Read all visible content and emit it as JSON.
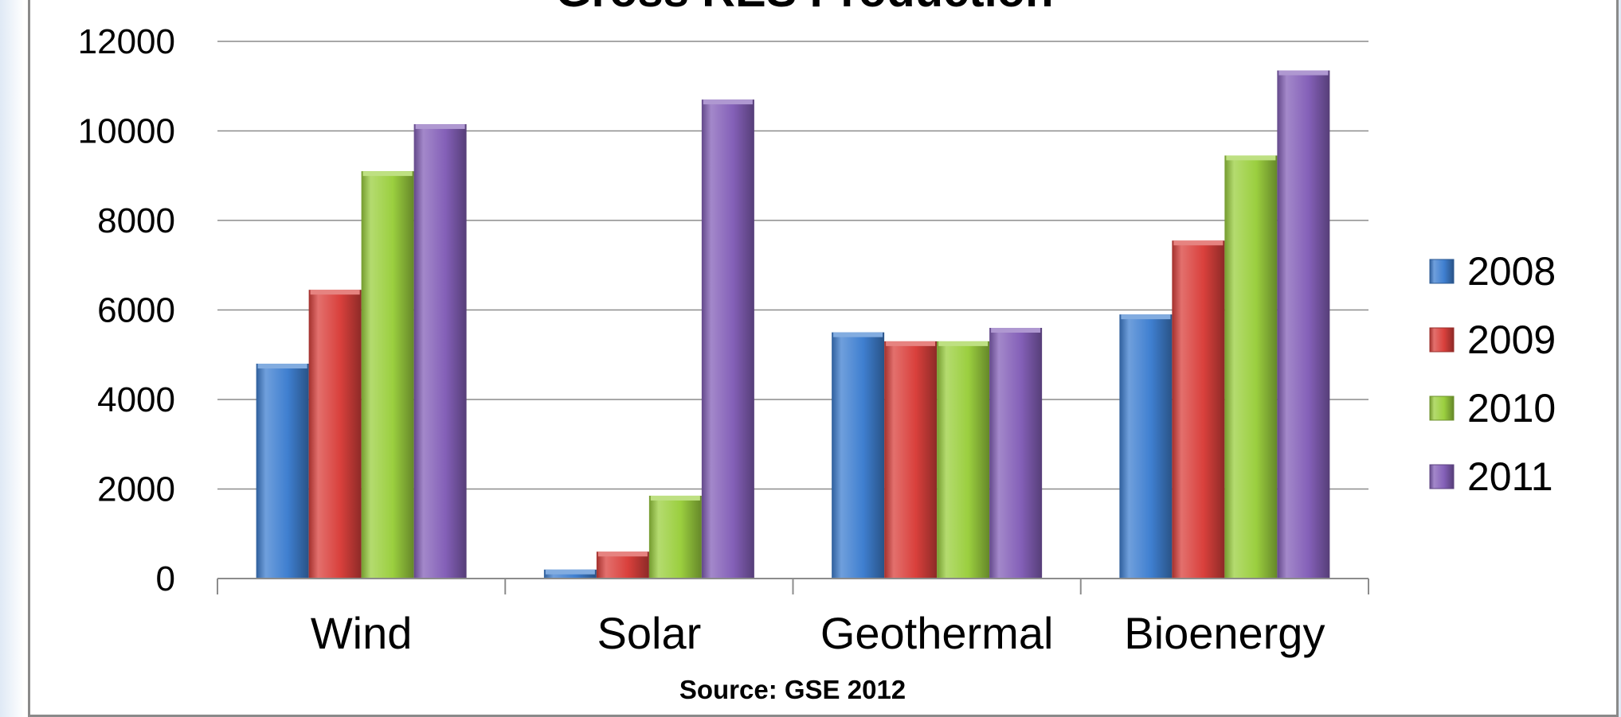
{
  "chart_data": {
    "type": "bar",
    "title": "Gross RES Production",
    "categories": [
      "Wind",
      "Solar",
      "Geothermal",
      "Bioenergy"
    ],
    "series": [
      {
        "name": "2008",
        "color": "#3f7fd0",
        "values": [
          4800,
          200,
          5500,
          5900
        ]
      },
      {
        "name": "2009",
        "color": "#d9403c",
        "values": [
          6450,
          600,
          5300,
          7550
        ]
      },
      {
        "name": "2010",
        "color": "#9bcf3f",
        "values": [
          9100,
          1850,
          5300,
          9450
        ]
      },
      {
        "name": "2011",
        "color": "#8460b8",
        "values": [
          10150,
          10700,
          5600,
          11350
        ]
      }
    ],
    "ylim": [
      0,
      12000
    ],
    "yticks": [
      0,
      2000,
      4000,
      6000,
      8000,
      10000,
      12000
    ],
    "xlabel": "",
    "ylabel": "",
    "grid": true,
    "legend_position": "right"
  },
  "source_note": "Source: GSE 2012"
}
